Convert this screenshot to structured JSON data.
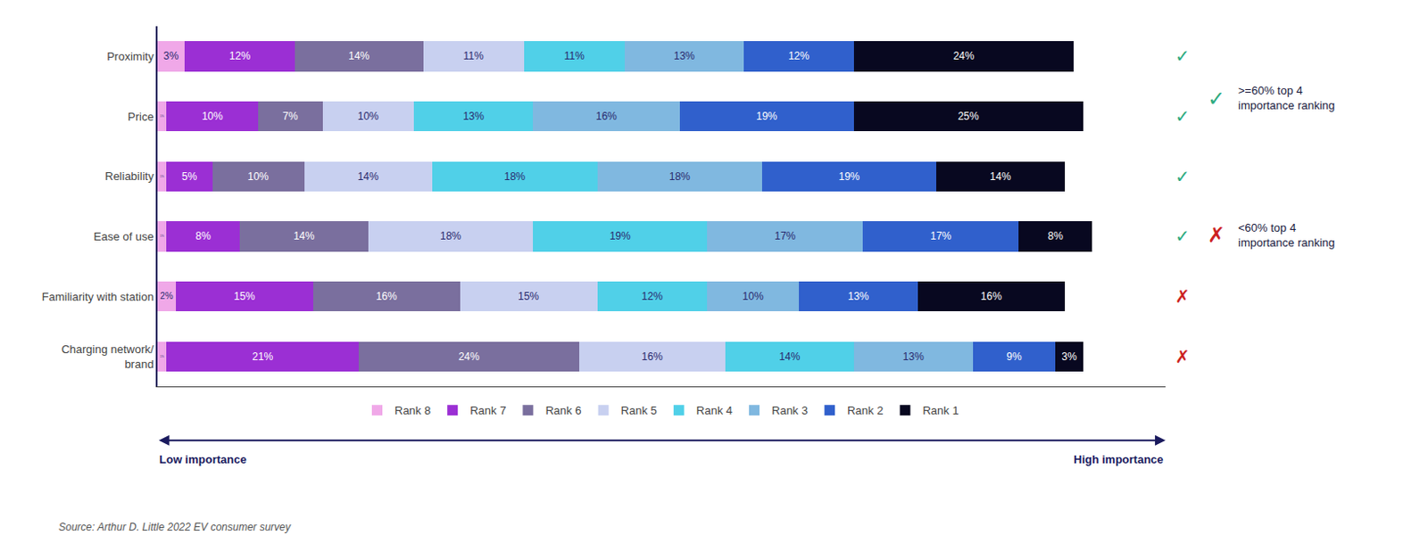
{
  "chart_data": {
    "type": "bar",
    "orientation": "horizontal",
    "stacked": true,
    "data_labels": true,
    "tick_labels": "y",
    "grid": false,
    "legend": "bottom",
    "categories": [
      "Proximity",
      "Price",
      "Reliability",
      "Ease of use",
      "Familiarity with station",
      "Charging network/\nbrand"
    ],
    "xlim": [
      0,
      110
    ],
    "xticks": [],
    "series": [
      {
        "name": "Rank 8",
        "color": "#f0a8e8",
        "values": [
          3,
          1,
          1,
          1,
          2,
          1
        ],
        "value_labels": [
          "3%",
          "1%",
          "1%",
          "1%",
          "2%",
          "1%"
        ]
      },
      {
        "name": "Rank 7",
        "color": "#9b2fd4",
        "values": [
          12,
          10,
          5,
          8,
          15,
          21
        ],
        "value_labels": [
          "12%",
          "10%",
          "5%",
          "8%",
          "15%",
          "21%"
        ]
      },
      {
        "name": "Rank 6",
        "color": "#7a6f9e",
        "values": [
          14,
          7,
          10,
          14,
          16,
          24
        ],
        "value_labels": [
          "14%",
          "7%",
          "10%",
          "14%",
          "16%",
          "24%"
        ]
      },
      {
        "name": "Rank 5",
        "color": "#c8d0f0",
        "values": [
          11,
          10,
          14,
          18,
          15,
          16
        ],
        "value_labels": [
          "11%",
          "10%",
          "14%",
          "18%",
          "15%",
          "16%"
        ]
      },
      {
        "name": "Rank 4",
        "color": "#50d0e8",
        "values": [
          11,
          13,
          18,
          19,
          12,
          14
        ],
        "value_labels": [
          "11%",
          "13%",
          "18%",
          "19%",
          "12%",
          "14%"
        ]
      },
      {
        "name": "Rank 3",
        "color": "#80b8e0",
        "values": [
          13,
          16,
          18,
          17,
          10,
          13
        ],
        "value_labels": [
          "13%",
          "16%",
          "18%",
          "17%",
          "10%",
          "13%"
        ]
      },
      {
        "name": "Rank 2",
        "color": "#3060cc",
        "values": [
          12,
          19,
          19,
          17,
          13,
          9
        ],
        "value_labels": [
          "12%",
          "19%",
          "19%",
          "17%",
          "13%",
          "9%"
        ]
      },
      {
        "name": "Rank 1",
        "color": "#080820",
        "values": [
          24,
          25,
          14,
          8,
          16,
          3
        ],
        "value_labels": [
          "24%",
          "25%",
          "14%",
          "8%",
          "16%",
          "3%"
        ]
      }
    ],
    "annotations": [
      {
        "text": "✓",
        "color": "#2dab7f",
        "category": "Proximity"
      },
      {
        "text": "✓",
        "color": "#2dab7f",
        "category": "Price"
      },
      {
        "text": "✓",
        "color": "#2dab7f",
        "category": "Reliability"
      },
      {
        "text": "✓",
        "color": "#2dab7f",
        "category": "Ease of use"
      },
      {
        "text": "✗",
        "color": "#cc2222",
        "category": "Familiarity with station"
      },
      {
        "text": "✗",
        "color": "#cc2222",
        "category": "Charging network/\nbrand"
      },
      {
        "text": "Low importance",
        "color": "#1a1a5e"
      },
      {
        "text": "High importance",
        "color": "#1a1a5e"
      },
      {
        "text": "Source: Arthur D. Little 2022 EV consumer survey",
        "color": "#555555"
      },
      {
        "text": "✓",
        "color": "#2dab7f"
      },
      {
        "text": ">=60% top 4\nimportance ranking",
        "color": "#1a1a3e"
      },
      {
        "text": "✗",
        "color": "#cc2222"
      },
      {
        "text": "<60% top 4\nimportance ranking",
        "color": "#1a1a3e"
      }
    ]
  }
}
